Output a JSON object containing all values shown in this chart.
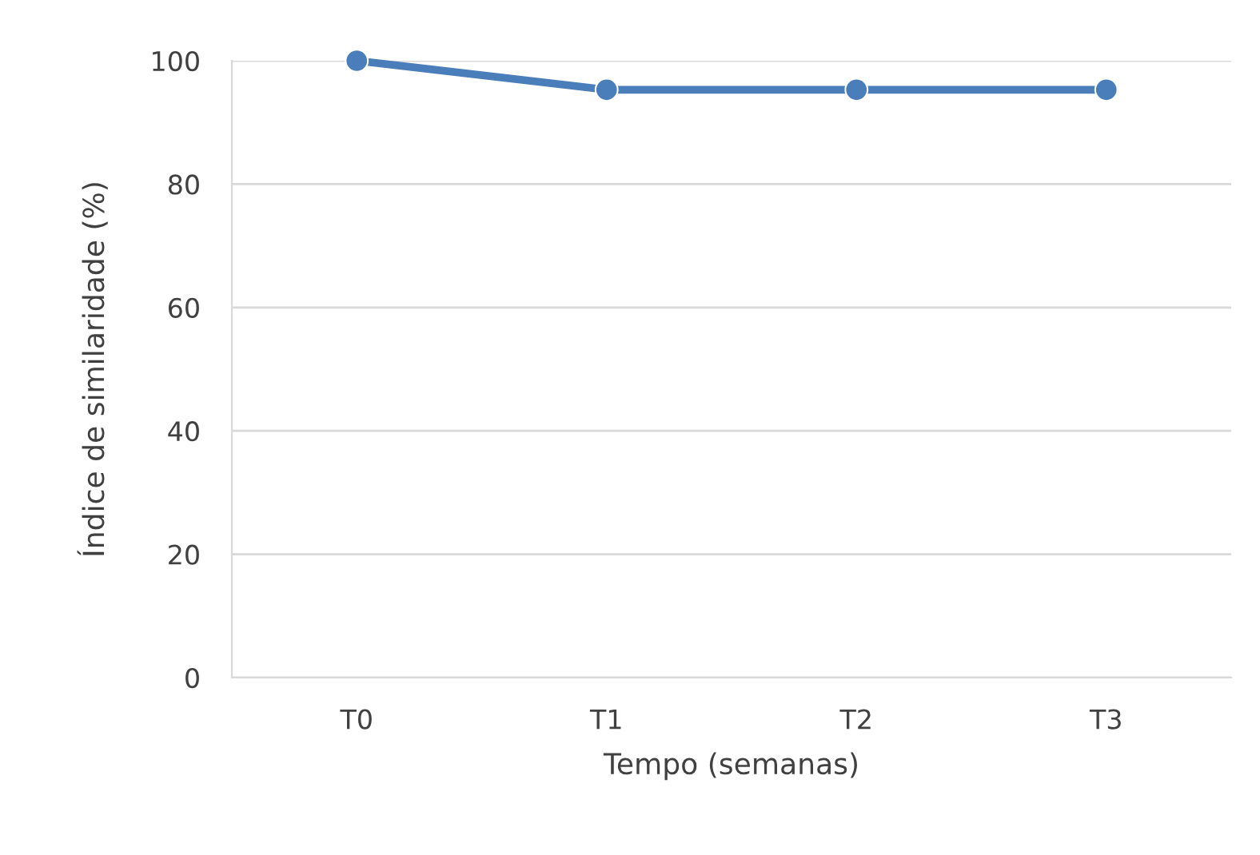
{
  "chart_data": {
    "type": "line",
    "xlabel": "Tempo (semanas)",
    "ylabel": "Índice de similaridade (%)",
    "categories": [
      "T0",
      "T1",
      "T2",
      "T3"
    ],
    "series": [
      {
        "color": "#4a7ebb",
        "values": [
          100,
          95.3,
          95.3,
          95.3
        ]
      }
    ],
    "ylim": [
      0,
      100
    ],
    "yticks": [
      0,
      20,
      40,
      60,
      80,
      100
    ],
    "grid": "y",
    "marker": "circle",
    "line_style": "solid"
  }
}
